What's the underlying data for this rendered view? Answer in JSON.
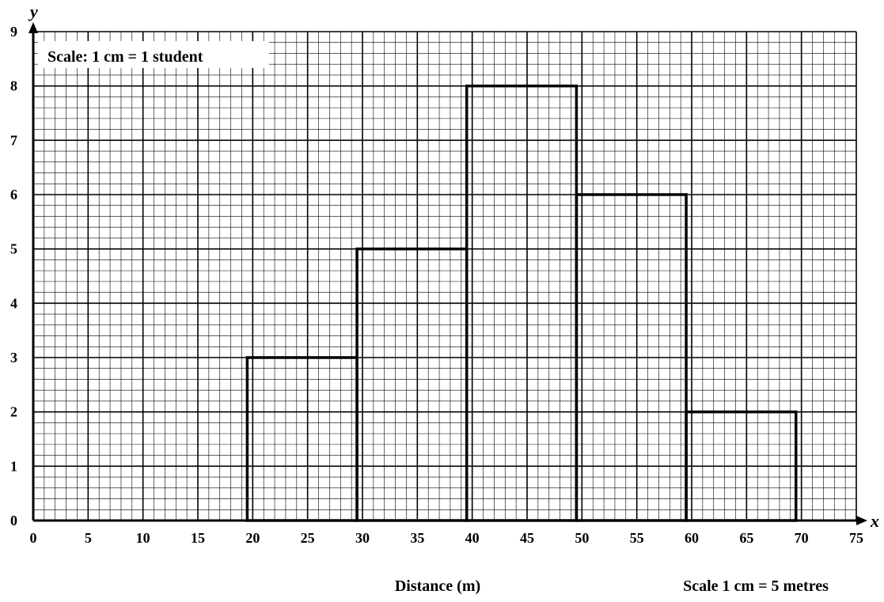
{
  "chart_data": {
    "type": "bar",
    "title": "",
    "xlabel": "Distance (m)",
    "ylabel": "",
    "x_axis_name": "x",
    "y_axis_name": "y",
    "xlim": [
      0,
      75
    ],
    "ylim": [
      0,
      9
    ],
    "x_ticks": [
      0,
      5,
      10,
      15,
      20,
      25,
      30,
      35,
      40,
      45,
      50,
      55,
      60,
      65,
      70,
      75
    ],
    "y_ticks": [
      0,
      1,
      2,
      3,
      4,
      5,
      6,
      7,
      8,
      9
    ],
    "grid": true,
    "y_scale_note": "Scale: 1 cm = 1 student",
    "x_scale_note": "Scale 1 cm = 5 metres",
    "bins": [
      {
        "start": 19.5,
        "end": 29.5,
        "value": 3
      },
      {
        "start": 29.5,
        "end": 39.5,
        "value": 5
      },
      {
        "start": 39.5,
        "end": 49.5,
        "value": 8
      },
      {
        "start": 49.5,
        "end": 59.5,
        "value": 6
      },
      {
        "start": 59.5,
        "end": 69.5,
        "value": 2
      }
    ]
  }
}
